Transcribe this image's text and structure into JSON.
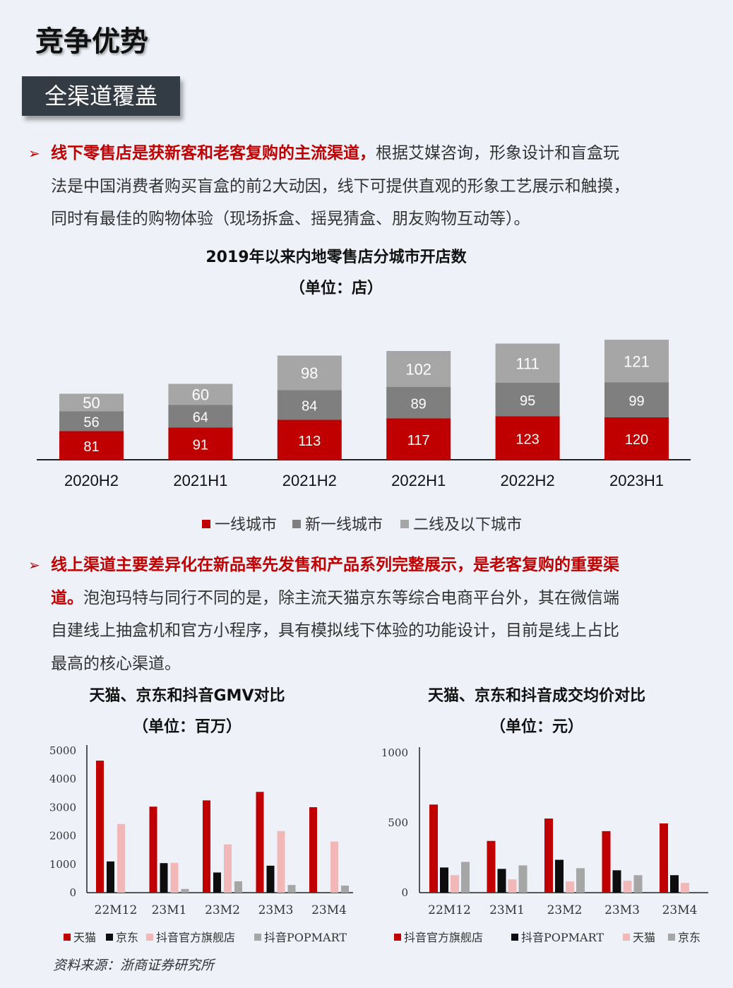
{
  "page_title": "竞争优势",
  "section_tag": "全渠道覆盖",
  "bullet_symbol": "➢",
  "para1": {
    "highlight": "线下零售店是获新客和老客复购的主流渠道，",
    "line1_rest": "根据艾媒咨询，形象设计和盲盒玩",
    "line2": "法是中国消费者购买盲盒的前2大动因，线下可提供直观的形象工艺展示和触摸，",
    "line3": "同时有最佳的购物体验（现场拆盒、摇晃猜盒、朋友购物互动等）。"
  },
  "para2": {
    "highlight_line1": "线上渠道主要差异化在新品率先发售和产品系列完整展示，是老客复购的重要渠",
    "highlight_line2": "道。",
    "line2_rest": "泡泡玛特与同行不同的是，除主流天猫京东等综合电商平台外，其在微信端",
    "line3": "自建线上抽盒机和官方小程序，具有模拟线下体验的功能设计，目前是线上占比",
    "line4": "最高的核心渠道。"
  },
  "source": "资料来源：浙商证券研究所",
  "chart_data": [
    {
      "type": "bar",
      "stacked": true,
      "title": "2019年以来内地零售店分城市开店数",
      "unit": "（单位：店）",
      "categories": [
        "2020H2",
        "2021H1",
        "2021H2",
        "2022H1",
        "2022H2",
        "2023H1"
      ],
      "series": [
        {
          "name": "一线城市",
          "color": "#c00000",
          "values": [
            81,
            91,
            113,
            117,
            123,
            120
          ]
        },
        {
          "name": "新一线城市",
          "color": "#7f7f7f",
          "values": [
            56,
            64,
            84,
            89,
            95,
            99
          ]
        },
        {
          "name": "二线及以下城市",
          "color": "#a6a6a6",
          "values": [
            50,
            60,
            98,
            102,
            111,
            121
          ]
        }
      ],
      "legend_position": "bottom",
      "grid": false
    },
    {
      "type": "bar",
      "title": "天猫、京东和抖音GMV对比",
      "unit": "（单位：百万）",
      "categories": [
        "22M12",
        "23M1",
        "23M2",
        "23M3",
        "23M4"
      ],
      "yticks": [
        "0",
        "1000",
        "2000",
        "3000",
        "4000",
        "5000"
      ],
      "ylim": [
        0,
        5000
      ],
      "series": [
        {
          "name": "天猫",
          "color": "#c00000",
          "values": [
            4650,
            3030,
            3250,
            3550,
            3010
          ]
        },
        {
          "name": "京东",
          "color": "#0d0d0d",
          "values": [
            1100,
            1040,
            710,
            950,
            0
          ]
        },
        {
          "name": "抖音官方旗舰店",
          "color": "#f2b7b7",
          "values": [
            2420,
            1050,
            1700,
            2170,
            1800
          ]
        },
        {
          "name": "抖音POPMART",
          "color": "#a6a6a6",
          "values": [
            0,
            130,
            400,
            270,
            250
          ]
        }
      ],
      "legend_position": "bottom",
      "grid": false
    },
    {
      "type": "bar",
      "title": "天猫、京东和抖音成交均价对比",
      "unit": "（单位：元）",
      "categories": [
        "22M12",
        "23M1",
        "23M2",
        "23M3",
        "23M4"
      ],
      "yticks": [
        "0",
        "500",
        "1000"
      ],
      "ylim": [
        0,
        1000
      ],
      "series": [
        {
          "name": "抖音官方旗舰店",
          "color": "#c00000",
          "values": [
            630,
            370,
            530,
            440,
            495
          ]
        },
        {
          "name": "抖音POPMART",
          "color": "#0d0d0d",
          "values": [
            180,
            170,
            235,
            160,
            125
          ]
        },
        {
          "name": "天猫",
          "color": "#f2b7b7",
          "values": [
            125,
            95,
            80,
            85,
            70
          ]
        },
        {
          "name": "京东",
          "color": "#a6a6a6",
          "values": [
            220,
            195,
            175,
            125,
            0
          ]
        }
      ],
      "legend_position": "bottom",
      "grid": false
    }
  ]
}
